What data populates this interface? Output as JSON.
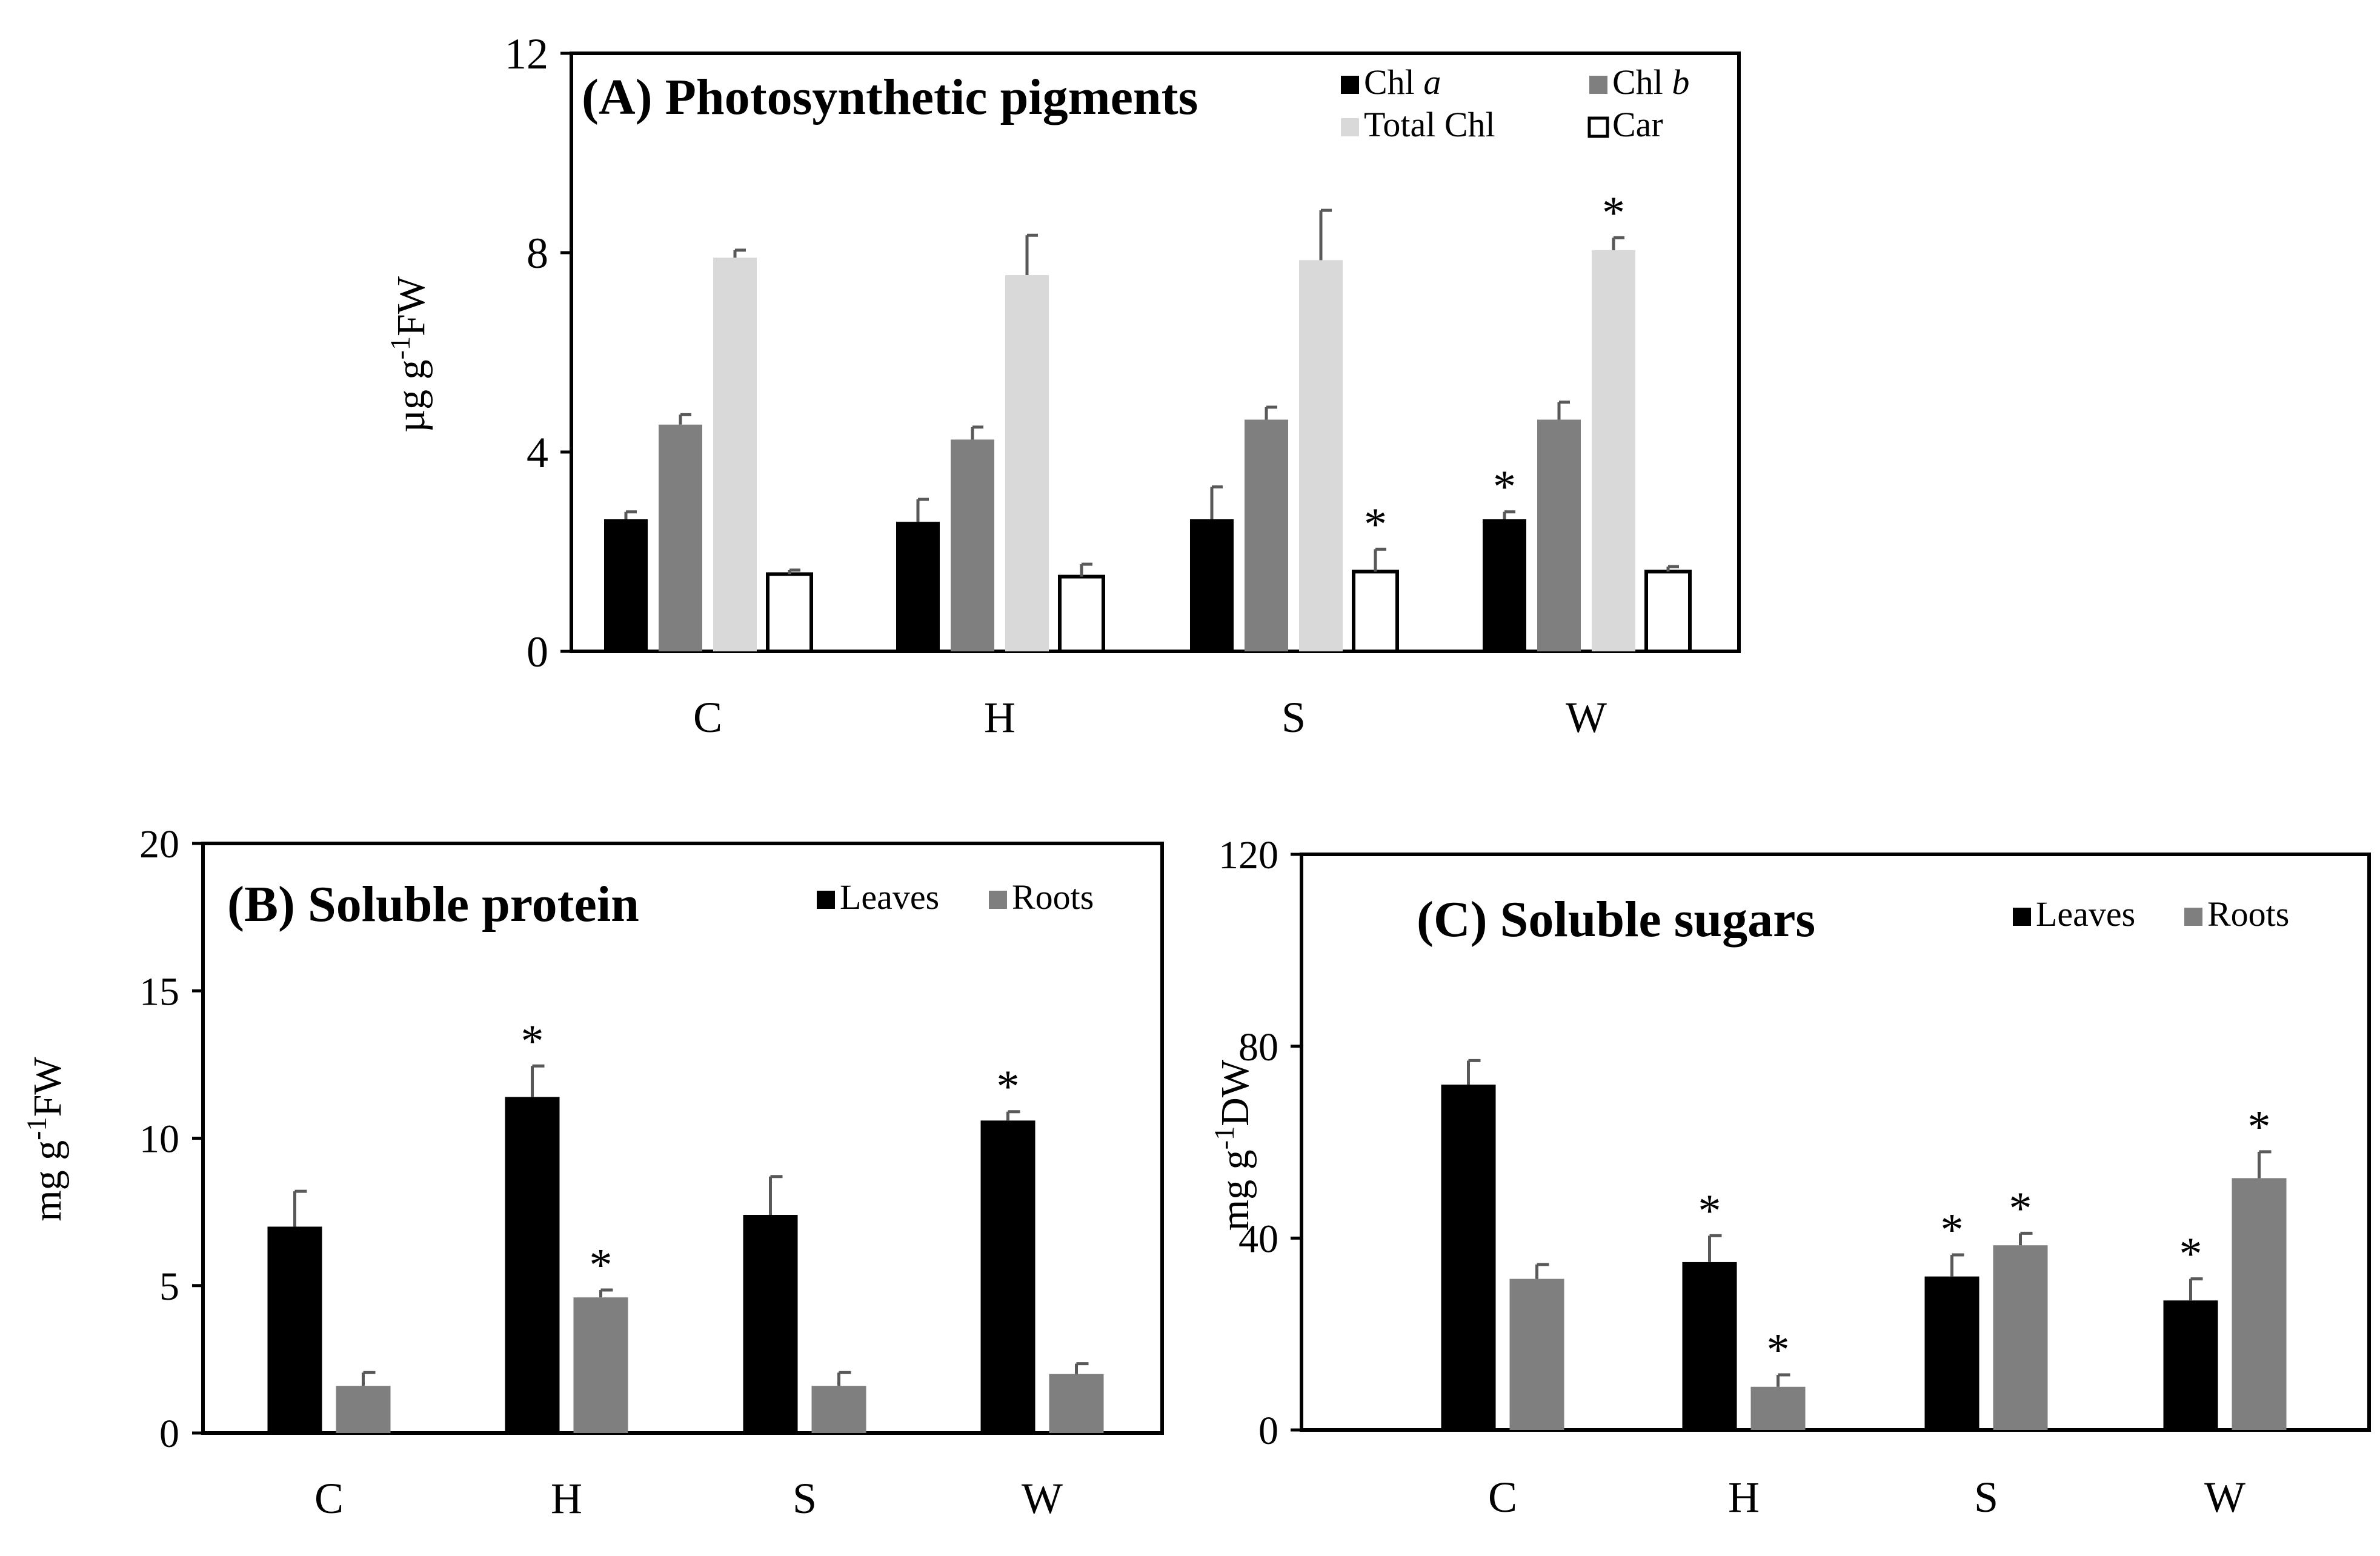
{
  "colors": {
    "chl_a": "#000000",
    "chl_b": "#7f7f7f",
    "total_chl": "#d9d9d9",
    "car": "#ffffff",
    "leaves": "#000000",
    "roots": "#7f7f7f",
    "error_bar": "#595959",
    "axis": "#000000"
  },
  "chart_data": [
    {
      "id": "A",
      "type": "bar",
      "title": "(A) Photosynthetic pigments",
      "ylabel": "µg g-1FW",
      "ylabel_parts": {
        "base": "µg g",
        "sup": "-1",
        "tail": "FW"
      },
      "ylim": [
        0,
        12
      ],
      "yticks": [
        "0",
        "4",
        "8",
        "12"
      ],
      "categories": [
        "C",
        "H",
        "S",
        "W"
      ],
      "series": [
        {
          "name": "Chl a",
          "label_plain": "Chl ",
          "label_italic": "a",
          "color_key": "chl_a",
          "values": [
            2.65,
            2.6,
            2.65,
            2.65
          ],
          "errors": [
            0.15,
            0.45,
            0.65,
            0.15
          ],
          "sig": [
            "",
            "",
            "",
            "*"
          ]
        },
        {
          "name": "Chl b",
          "label_plain": "Chl ",
          "label_italic": "b",
          "color_key": "chl_b",
          "values": [
            4.55,
            4.25,
            4.65,
            4.65
          ],
          "errors": [
            0.2,
            0.25,
            0.25,
            0.35
          ],
          "sig": [
            "",
            "",
            "",
            ""
          ]
        },
        {
          "name": "Total Chl",
          "label_plain": "Total Chl",
          "label_italic": "",
          "color_key": "total_chl",
          "values": [
            7.9,
            7.55,
            7.85,
            8.05
          ],
          "errors": [
            0.15,
            0.8,
            1.0,
            0.25
          ],
          "sig": [
            "",
            "",
            "",
            "*"
          ]
        },
        {
          "name": "Car",
          "label_plain": "Car",
          "label_italic": "",
          "color_key": "car",
          "values": [
            1.55,
            1.5,
            1.6,
            1.6
          ],
          "errors": [
            0.08,
            0.25,
            0.45,
            0.1
          ],
          "sig": [
            "",
            "",
            "*",
            ""
          ]
        }
      ]
    },
    {
      "id": "B",
      "type": "bar",
      "title": "(B) Soluble protein",
      "ylabel": "mg g-1FW",
      "ylabel_parts": {
        "base": "mg g",
        "sup": "-1",
        "tail": "FW"
      },
      "ylim": [
        0,
        20
      ],
      "yticks": [
        "0",
        "5",
        "10",
        "15",
        "20"
      ],
      "categories": [
        "C",
        "H",
        "S",
        "W"
      ],
      "series": [
        {
          "name": "Leaves",
          "label_plain": "Leaves",
          "label_italic": "",
          "color_key": "leaves",
          "values": [
            7.0,
            11.4,
            7.4,
            10.6
          ],
          "errors": [
            1.2,
            1.05,
            1.3,
            0.3
          ],
          "sig": [
            "",
            "*",
            "",
            "*"
          ]
        },
        {
          "name": "Roots",
          "label_plain": "Roots",
          "label_italic": "",
          "color_key": "roots",
          "values": [
            1.6,
            4.6,
            1.6,
            2.0
          ],
          "errors": [
            0.45,
            0.25,
            0.45,
            0.35
          ],
          "sig": [
            "",
            "*",
            "",
            ""
          ]
        }
      ]
    },
    {
      "id": "C",
      "type": "bar",
      "title": "(C) Soluble sugars",
      "ylabel": "mg g-1DW",
      "ylabel_parts": {
        "base": "mg g",
        "sup": "-1",
        "tail": "DW"
      },
      "ylim": [
        0,
        120
      ],
      "yticks": [
        "0",
        "40",
        "80",
        "120"
      ],
      "categories": [
        "C",
        "H",
        "S",
        "W"
      ],
      "series": [
        {
          "name": "Leaves",
          "label_plain": "Leaves",
          "label_italic": "",
          "color_key": "leaves",
          "values": [
            72,
            35,
            32,
            27
          ],
          "errors": [
            5,
            5.5,
            4.5,
            4.5
          ],
          "sig": [
            "",
            "*",
            "*",
            "*"
          ]
        },
        {
          "name": "Roots",
          "label_plain": "Roots",
          "label_italic": "",
          "color_key": "roots",
          "values": [
            31.5,
            9,
            38.5,
            52.5
          ],
          "errors": [
            3,
            2.5,
            2.5,
            5.5
          ],
          "sig": [
            "",
            "*",
            "*",
            "*"
          ]
        }
      ]
    }
  ]
}
